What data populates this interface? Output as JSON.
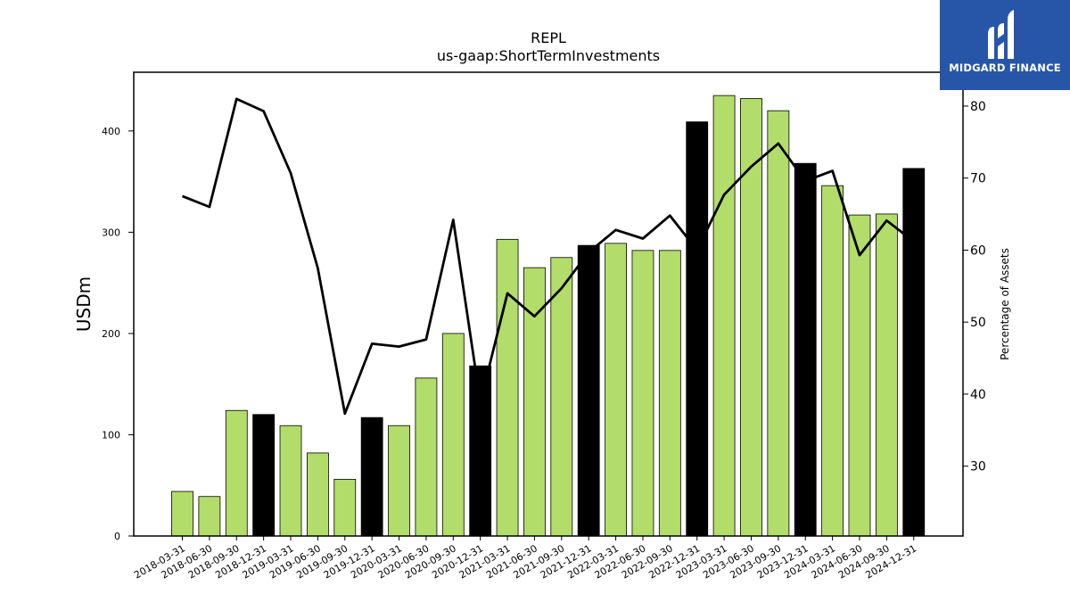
{
  "chart_data": {
    "type": "bar",
    "title": "REPL",
    "subtitle": "us-gaap:ShortTermInvestments",
    "ylabel": "USDm",
    "ylabel_right": "Percentage of Assets",
    "ylim": [
      0,
      458
    ],
    "ylim_right": [
      20.3,
      84.7
    ],
    "yticks": [
      0,
      100,
      200,
      300,
      400
    ],
    "yticks_right": [
      30,
      40,
      50,
      60,
      70,
      80
    ],
    "categories": [
      "2018-03-31",
      "2018-06-30",
      "2018-09-30",
      "2018-12-31",
      "2019-03-31",
      "2019-06-30",
      "2019-09-30",
      "2019-12-31",
      "2020-03-31",
      "2020-06-30",
      "2020-09-30",
      "2020-12-31",
      "2021-03-31",
      "2021-06-30",
      "2021-09-30",
      "2021-12-31",
      "2022-03-31",
      "2022-06-30",
      "2022-09-30",
      "2022-12-31",
      "2023-03-31",
      "2023-06-30",
      "2023-09-30",
      "2023-12-31",
      "2024-03-31",
      "2024-06-30",
      "2024-09-30",
      "2024-12-31"
    ],
    "series": [
      {
        "type": "bar",
        "values": [
          44,
          39,
          124,
          120,
          109,
          82,
          56,
          117,
          109,
          156,
          200,
          168,
          293,
          265,
          275,
          287,
          289,
          282,
          282,
          409,
          435,
          432,
          420,
          368,
          346,
          317,
          318,
          363
        ],
        "colors": [
          "#b3dd6b",
          "#b3dd6b",
          "#b3dd6b",
          "#000000",
          "#b3dd6b",
          "#b3dd6b",
          "#b3dd6b",
          "#000000",
          "#b3dd6b",
          "#b3dd6b",
          "#b3dd6b",
          "#000000",
          "#b3dd6b",
          "#b3dd6b",
          "#b3dd6b",
          "#000000",
          "#b3dd6b",
          "#b3dd6b",
          "#b3dd6b",
          "#000000",
          "#b3dd6b",
          "#b3dd6b",
          "#b3dd6b",
          "#000000",
          "#b3dd6b",
          "#b3dd6b",
          "#b3dd6b",
          "#000000"
        ]
      },
      {
        "type": "line",
        "axis": "right",
        "color": "#000000",
        "values": [
          67.5,
          66.0,
          81.0,
          79.3,
          70.7,
          57.5,
          37.3,
          47.0,
          46.6,
          47.6,
          64.2,
          38.9,
          54.0,
          50.8,
          54.7,
          59.7,
          62.8,
          61.6,
          64.8,
          60.0,
          67.7,
          71.6,
          74.8,
          69.6,
          71.0,
          59.3,
          64.1,
          61.2
        ]
      }
    ],
    "colors": {
      "accent_bar": "#b3dd6b",
      "year_end_bar": "#000000",
      "line": "#000000"
    }
  },
  "logo": {
    "text": "MIDGARD FINANCE",
    "background": "#2756a8"
  }
}
